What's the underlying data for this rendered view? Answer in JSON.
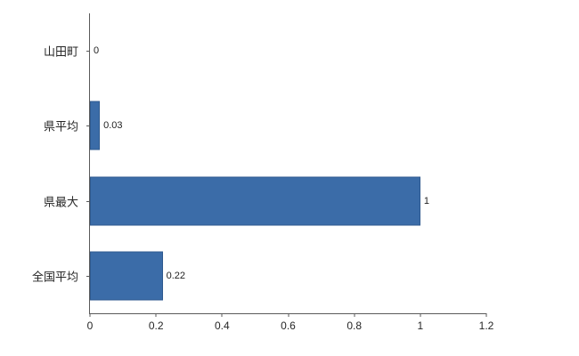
{
  "chart_data": {
    "type": "bar",
    "orientation": "horizontal",
    "title": "",
    "xlabel": "",
    "ylabel": "",
    "categories": [
      "山田町",
      "県平均",
      "県最大",
      "全国平均"
    ],
    "values": [
      0,
      0.03,
      1,
      0.22
    ],
    "value_labels": [
      "0",
      "0.03",
      "1",
      "0.22"
    ],
    "xlim": [
      0,
      1.2
    ],
    "x_ticks": [
      0,
      0.2,
      0.4,
      0.6,
      0.8,
      1,
      1.2
    ],
    "x_tick_labels": [
      "0",
      "0.2",
      "0.4",
      "0.6",
      "0.8",
      "1",
      "1.2"
    ],
    "bar_color": "#3B6CA8",
    "bar_border_color": "#2F5A8F",
    "axis_color": "#5a5a5a",
    "grid": false,
    "legend": false
  }
}
